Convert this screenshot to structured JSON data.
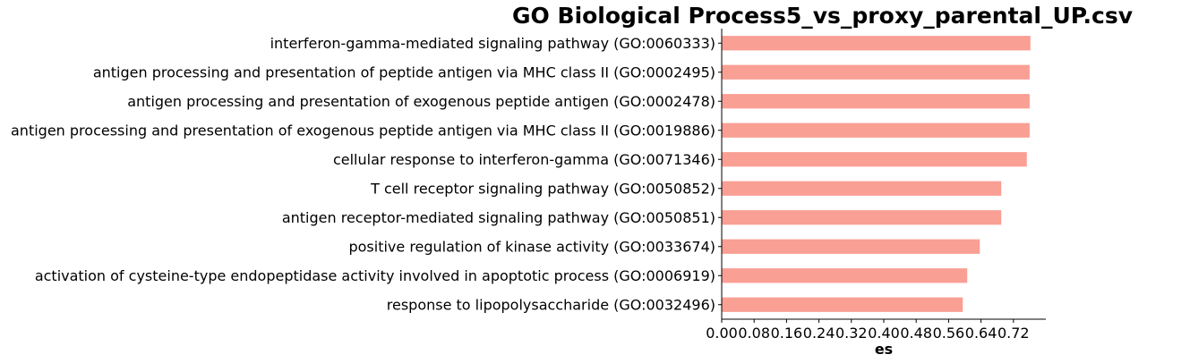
{
  "chart_data": {
    "type": "bar",
    "orientation": "horizontal",
    "title": "GO Biological Process5_vs_proxy_parental_UP.csv",
    "xlabel": "es",
    "ylabel": "",
    "xlim": [
      0,
      0.8
    ],
    "xticks": [
      0.0,
      0.08,
      0.16,
      0.24,
      0.32,
      0.4,
      0.48,
      0.56,
      0.64,
      0.72
    ],
    "xtick_labels": [
      "0.00",
      "0.08",
      "0.16",
      "0.24",
      "0.32",
      "0.40",
      "0.48",
      "0.56",
      "0.64",
      "0.72"
    ],
    "grid": false,
    "bar_color": "#fa9f94",
    "categories": [
      "interferon-gamma-mediated signaling pathway (GO:0060333)",
      "antigen processing and presentation of peptide antigen via MHC class II (GO:0002495)",
      "antigen processing and presentation of exogenous peptide antigen (GO:0002478)",
      "antigen processing and presentation of exogenous peptide antigen via MHC class II (GO:0019886)",
      "cellular response to interferon-gamma (GO:0071346)",
      "T cell receptor signaling pathway (GO:0050852)",
      "antigen receptor-mediated signaling pathway (GO:0050851)",
      "positive regulation of kinase activity (GO:0033674)",
      "activation of cysteine-type endopeptidase activity involved in apoptotic process (GO:0006919)",
      "response to lipopolysaccharide (GO:0032496)"
    ],
    "values": [
      0.762,
      0.76,
      0.76,
      0.76,
      0.753,
      0.69,
      0.69,
      0.637,
      0.606,
      0.595
    ]
  }
}
